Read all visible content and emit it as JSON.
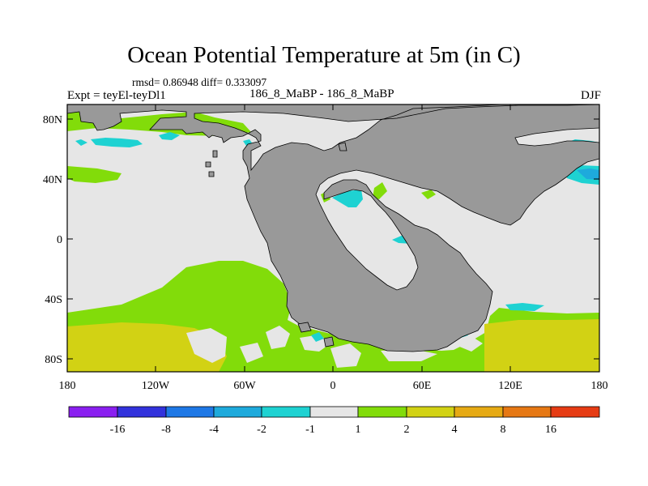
{
  "header": {
    "title": "Ocean Potential Temperature at 5m (in C)",
    "stats": "rmsd= 0.86948 diff= 0.333097",
    "experiment": "Expt = teyEl-teyDl1",
    "comparison": "186_8_MaBP - 186_8_MaBP",
    "season": "DJF"
  },
  "axes": {
    "y_ticks": [
      "80N",
      "40N",
      "0",
      "40S",
      "80S"
    ],
    "x_ticks": [
      "180",
      "120W",
      "60W",
      "0",
      "60E",
      "120E",
      "180"
    ]
  },
  "colorbar": {
    "labels": [
      "-16",
      "-8",
      "-4",
      "-2",
      "-1",
      "1",
      "2",
      "4",
      "8",
      "16"
    ],
    "colors": [
      "#8a1ff0",
      "#3232dc",
      "#1e78e6",
      "#1eaadc",
      "#1ed2d2",
      "#e6e6e6",
      "#82dc0a",
      "#d2d214",
      "#e6aa14",
      "#e67814",
      "#e63c14"
    ]
  },
  "palette": {
    "land": "#999999",
    "background_anomaly": "#e6e6e6"
  }
}
